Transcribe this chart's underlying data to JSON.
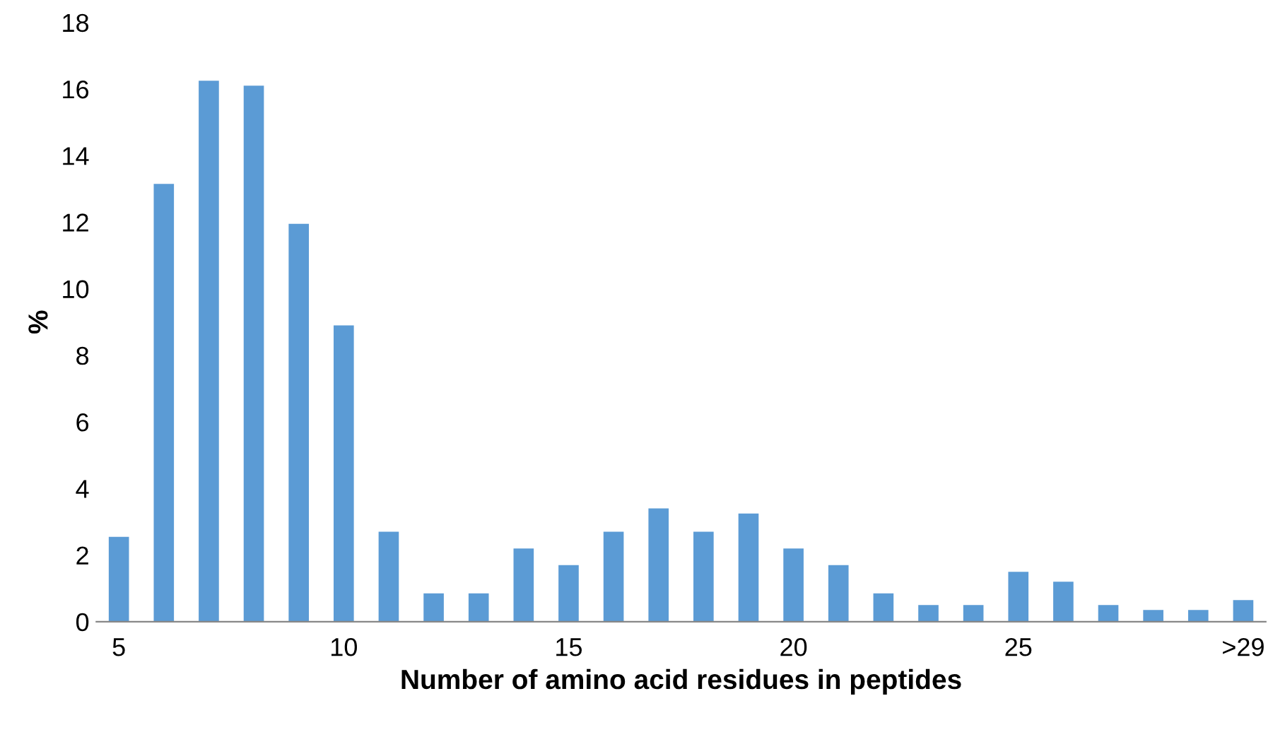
{
  "chart_data": {
    "type": "bar",
    "xlabel": "Number of amino acid residues in peptides",
    "ylabel": "%",
    "categories": [
      "5",
      null,
      null,
      null,
      null,
      "10",
      null,
      null,
      null,
      null,
      "15",
      null,
      null,
      null,
      null,
      "20",
      null,
      null,
      null,
      null,
      "25",
      null,
      null,
      null,
      null,
      ">29"
    ],
    "values": [
      2.55,
      13.15,
      16.25,
      16.1,
      11.95,
      8.9,
      2.7,
      0.85,
      0.85,
      2.2,
      1.7,
      2.7,
      3.4,
      2.7,
      3.25,
      2.2,
      1.7,
      0.85,
      0.5,
      0.5,
      1.5,
      1.2,
      0.5,
      0.35,
      0.35,
      0.65
    ],
    "color": "#5b9bd5",
    "ylim": [
      0,
      18
    ],
    "yticks": [
      0,
      2,
      4,
      6,
      8,
      10,
      12,
      14,
      16,
      18
    ],
    "grid": false,
    "legend": false
  }
}
